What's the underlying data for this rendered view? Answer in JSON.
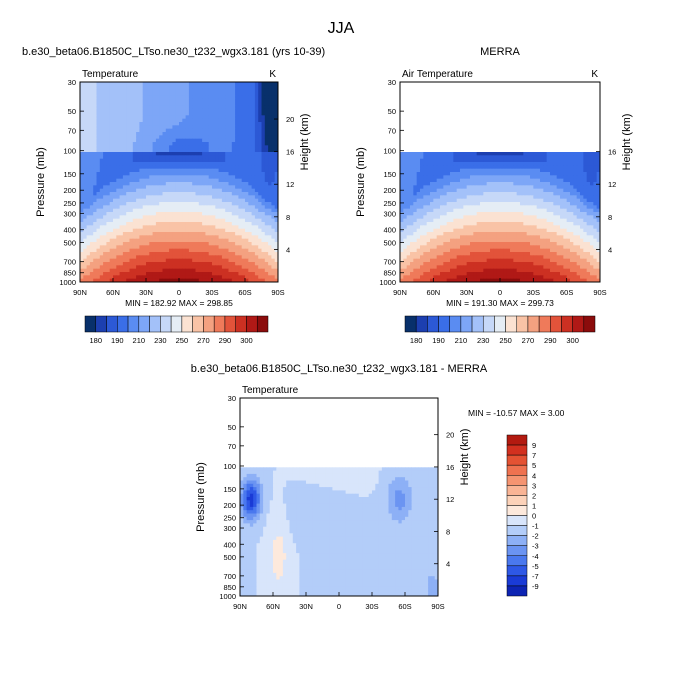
{
  "page_title": "JJA",
  "colors": {
    "full_palette": [
      "#08306b",
      "#1c3fb0",
      "#2c59d6",
      "#3a6ee8",
      "#5a8cf2",
      "#7da6f7",
      "#a3c1f9",
      "#c6d8f8",
      "#e5edf5",
      "#fbe2d2",
      "#f9c3a6",
      "#f4a180",
      "#ef7a5a",
      "#e2533a",
      "#cc3022",
      "#b01916",
      "#8b0c0c"
    ],
    "diff_palette": [
      "#07117b",
      "#0d24b3",
      "#1a3bd6",
      "#2e58e6",
      "#4a78ee",
      "#6b94f2",
      "#8db0f6",
      "#b3cdf9",
      "#d8e5fb",
      "#fde9dc",
      "#fcd2b9",
      "#f9b495",
      "#f59471",
      "#ef7250",
      "#e45233",
      "#d2301f",
      "#b31a10",
      "#8e0b07"
    ]
  },
  "chart_data": [
    {
      "id": "model",
      "type": "heatmap",
      "title": "b.e30_beta06.B1850C_LTso.ne30_t232_wgx3.181 (yrs 10-39)",
      "left_label": "Temperature",
      "right_label": "K",
      "ylabel": "Pressure (mb)",
      "y2label": "Height (km)",
      "x_ticks": [
        "90N",
        "60N",
        "30N",
        "0",
        "30S",
        "60S",
        "90S"
      ],
      "y_ticks": [
        30,
        50,
        70,
        100,
        150,
        200,
        250,
        300,
        400,
        500,
        700,
        850,
        1000
      ],
      "y2_ticks": [
        20,
        16,
        12,
        8,
        4
      ],
      "ylim": [
        30,
        1000
      ],
      "stats": "MIN = 182.92  MAX = 298.85",
      "levels": [
        180,
        190,
        210,
        230,
        250,
        270,
        290,
        300
      ],
      "data_top_pressure": 30
    },
    {
      "id": "obs",
      "type": "heatmap",
      "title": "MERRA",
      "left_label": "Air Temperature",
      "right_label": "K",
      "ylabel": "Pressure (mb)",
      "y2label": "Height (km)",
      "x_ticks": [
        "90N",
        "60N",
        "30N",
        "0",
        "30S",
        "60S",
        "90S"
      ],
      "y_ticks": [
        30,
        50,
        70,
        100,
        150,
        200,
        250,
        300,
        400,
        500,
        700,
        850,
        1000
      ],
      "y2_ticks": [
        16,
        12,
        8,
        4
      ],
      "ylim": [
        30,
        1000
      ],
      "stats": "MIN = 191.30  MAX = 299.73",
      "levels": [
        180,
        190,
        210,
        230,
        250,
        270,
        290,
        300
      ],
      "data_top_pressure": 100
    },
    {
      "id": "diff",
      "type": "heatmap",
      "title": "b.e30_beta06.B1850C_LTso.ne30_t232_wgx3.181 - MERRA",
      "left_label": "Temperature",
      "right_label": "",
      "ylabel": "Pressure (mb)",
      "y2label": "Height (km)",
      "x_ticks": [
        "90N",
        "60N",
        "30N",
        "0",
        "30S",
        "60S",
        "90S"
      ],
      "y_ticks": [
        30,
        50,
        70,
        100,
        150,
        200,
        250,
        300,
        400,
        500,
        700,
        850,
        1000
      ],
      "y2_ticks": [
        20,
        16,
        12,
        8,
        4
      ],
      "ylim": [
        30,
        1000
      ],
      "stats": "MIN = -10.57  MAX =   3.00",
      "levels": [
        9,
        7,
        5,
        4,
        3,
        2,
        1,
        0,
        -1,
        -2,
        -3,
        -4,
        -5,
        -7,
        -9
      ],
      "data_top_pressure": 100
    }
  ]
}
